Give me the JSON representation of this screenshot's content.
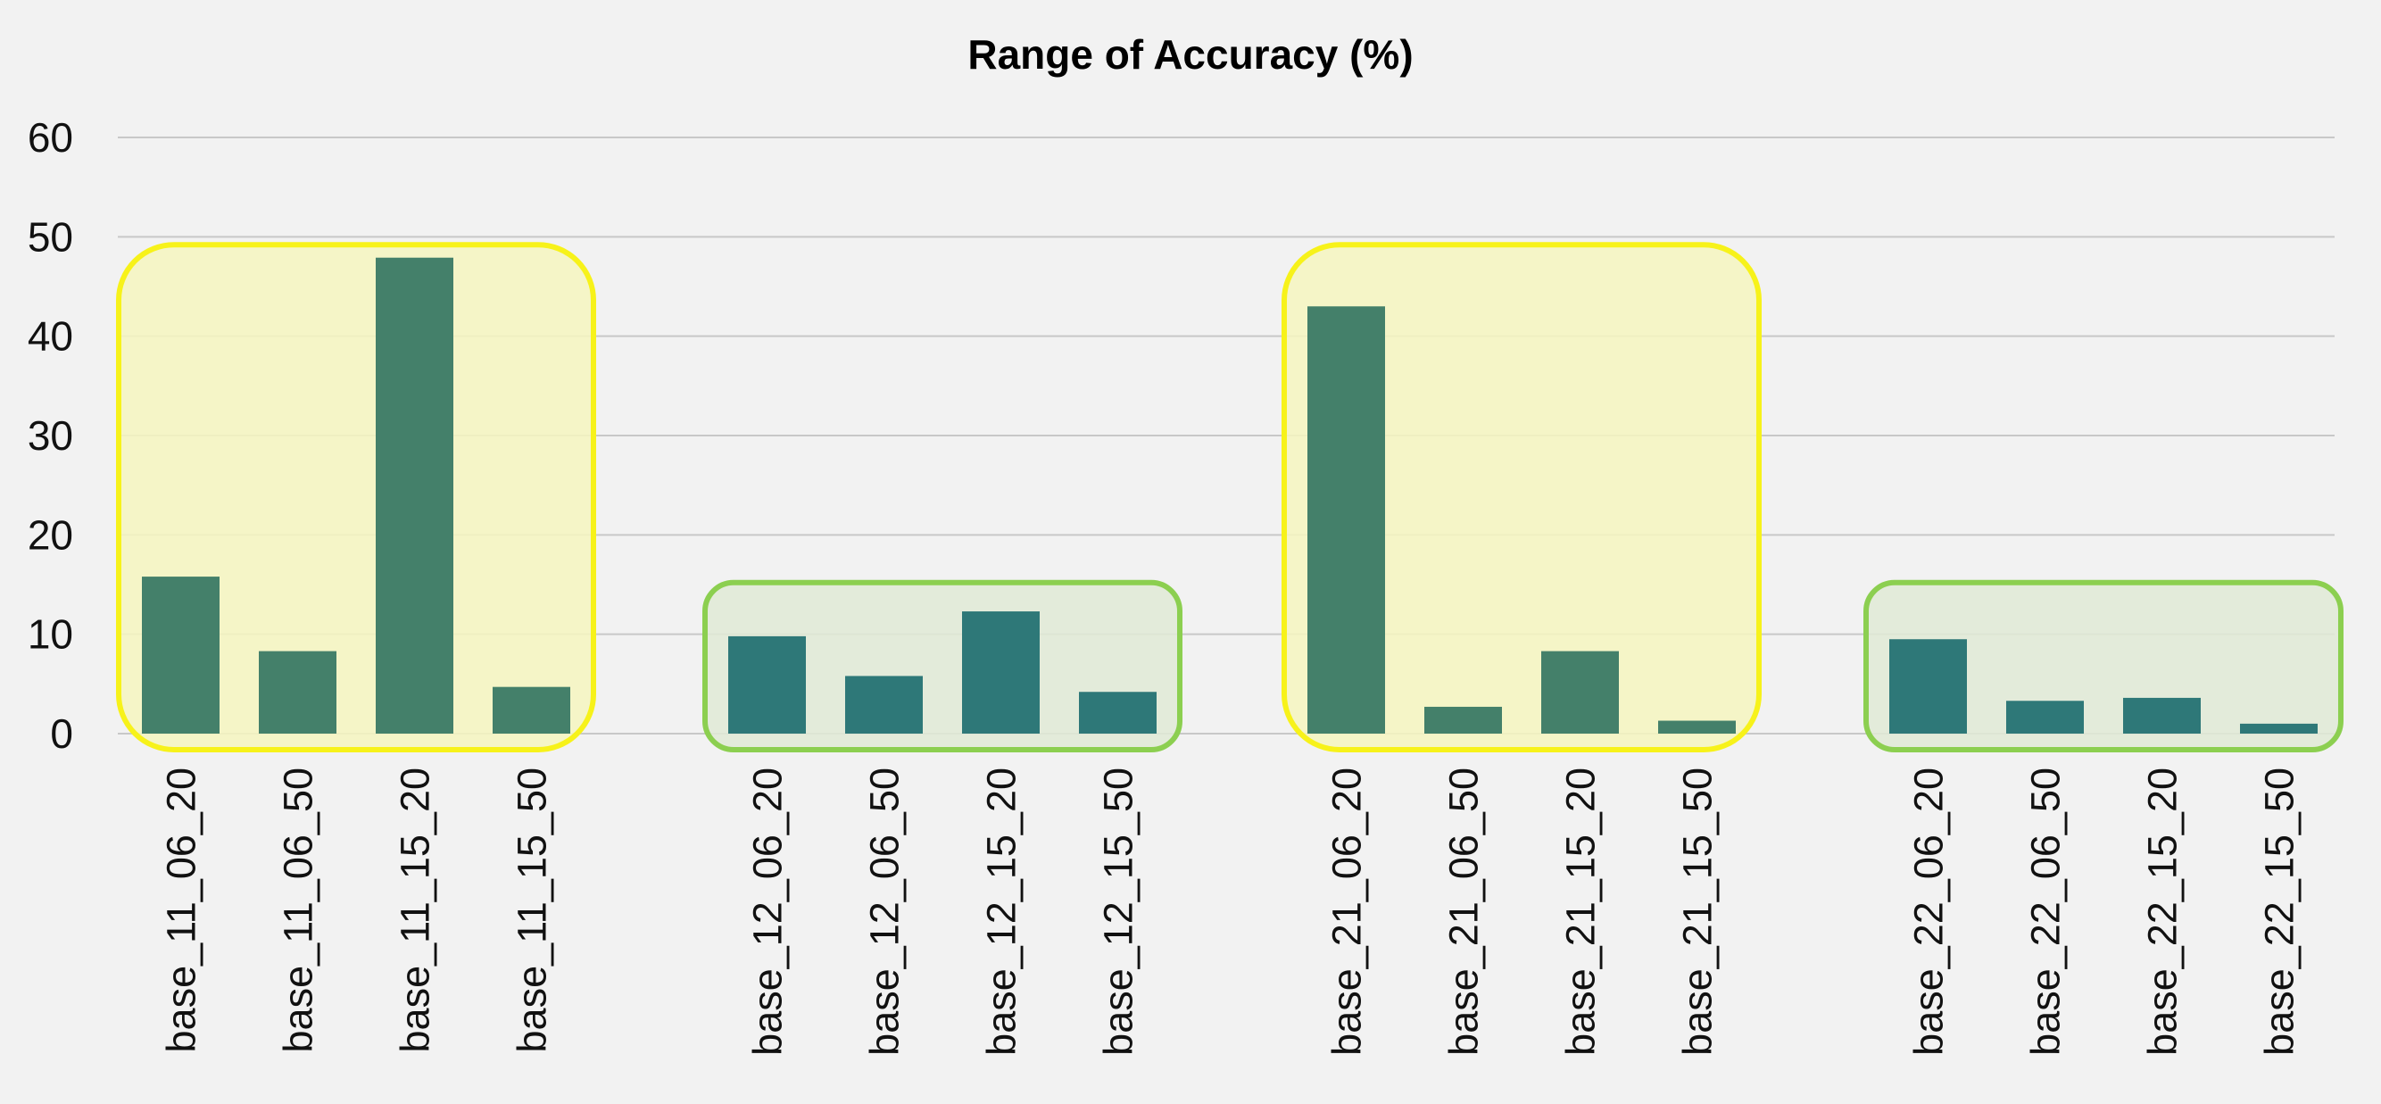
{
  "chart_data": {
    "type": "bar",
    "title": "Range of Accuracy (%)",
    "xlabel": "",
    "ylabel": "",
    "ylim": [
      0,
      60
    ],
    "yticks": [
      0,
      10,
      20,
      30,
      40,
      50,
      60
    ],
    "grid": true,
    "legend": "none",
    "groups": [
      {
        "highlight": "yellow",
        "bar_color": "#44806a",
        "categories": [
          "base_11_06_20",
          "base_11_06_50",
          "base_11_15_20",
          "base_11_15_50"
        ],
        "values": [
          15.8,
          8.3,
          47.9,
          4.7
        ]
      },
      {
        "highlight": "green",
        "bar_color": "#2e7878",
        "categories": [
          "base_12_06_20",
          "base_12_06_50",
          "base_12_15_20",
          "base_12_15_50"
        ],
        "values": [
          9.8,
          5.8,
          12.3,
          4.2
        ]
      },
      {
        "highlight": "yellow",
        "bar_color": "#44806a",
        "categories": [
          "base_21_06_20",
          "base_21_06_50",
          "base_21_15_20",
          "base_21_15_50"
        ],
        "values": [
          43.0,
          2.7,
          8.3,
          1.3
        ]
      },
      {
        "highlight": "green",
        "bar_color": "#2e7878",
        "categories": [
          "base_22_06_20",
          "base_22_06_50",
          "base_22_15_20",
          "base_22_15_50"
        ],
        "values": [
          9.5,
          3.3,
          3.6,
          1.0
        ]
      }
    ],
    "highlight_colors": {
      "yellow": {
        "fill": "#f6f6c0",
        "stroke": "#f7f21a"
      },
      "green": {
        "fill": "#e0ead6",
        "stroke": "#8ccf50"
      }
    },
    "gridline_color": "#c8c8c8"
  }
}
